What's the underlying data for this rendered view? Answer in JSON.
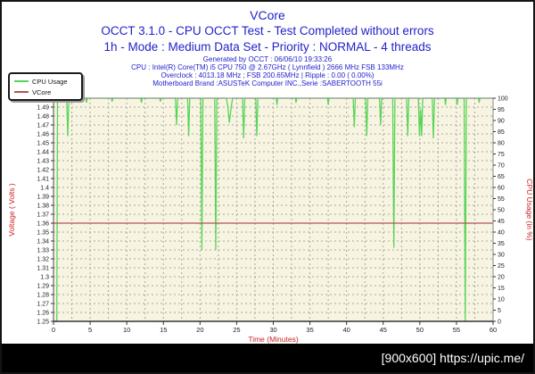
{
  "header": {
    "title": "VCore",
    "result_line": "OCCT 3.1.0 - CPU OCCT Test - Test Completed without errors",
    "mode_line": "1h - Mode : Medium Data Set - Priority : NORMAL - 4 threads",
    "info_lines": [
      "Generated by OCCT : 06/06/10 19:33:26",
      "CPU : Intel(R) Core(TM) i5 CPU 750 @ 2.67GHz ( Lynnfield ) 2666 MHz FSB 133MHz",
      "Overclock : 4013.18 MHz ; FSB 200.65MHz | Ripple : 0.00 ( 0.00%)",
      "Motherboard Brand :ASUSTeK Computer INC.,Serie :SABERTOOTH 55i"
    ]
  },
  "legend": {
    "items": [
      {
        "label": "CPU Usage",
        "color": "#58d558"
      },
      {
        "label": "VCore",
        "color": "#b05555"
      }
    ]
  },
  "watermark": {
    "text": "[900x600] https://upic.me/"
  },
  "colors": {
    "header_blue": "#2222cc",
    "axis_red": "#cc2222",
    "cpu_green": "#58d558",
    "vcore_red": "#b05555",
    "plot_background": "#f8f4e2"
  },
  "chart_data": {
    "type": "line",
    "title": "VCore",
    "grid": true,
    "legend_position": "top-left",
    "plot_bg": "#f8f4e2",
    "grid_color": "#a9a99b",
    "tick_color": "#222222",
    "axis_title_color": "#cc2222",
    "x_axis": {
      "label": "Time (Minutes)",
      "min": 0,
      "max": 60,
      "tick_step": 5,
      "minor_step": 2.5,
      "ticks": [
        0,
        5,
        10,
        15,
        20,
        25,
        30,
        35,
        40,
        45,
        50,
        55,
        60
      ]
    },
    "y_left": {
      "label": "Voltage ( Volts )",
      "min": 1.25,
      "max": 1.5,
      "tick_step": 0.01,
      "ticks": [
        "1.5",
        "1.49",
        "1.48",
        "1.47",
        "1.46",
        "1.45",
        "1.44",
        "1.43",
        "1.42",
        "1.41",
        "1.4",
        "1.39",
        "1.38",
        "1.37",
        "1.36",
        "1.35",
        "1.34",
        "1.33",
        "1.32",
        "1.31",
        "1.3",
        "1.29",
        "1.28",
        "1.27",
        "1.26",
        "1.25"
      ]
    },
    "y_right": {
      "label": "CPU Usage (in %)",
      "min": 0,
      "max": 100,
      "tick_step": 5,
      "ticks": [
        100,
        95,
        90,
        85,
        80,
        75,
        70,
        65,
        60,
        55,
        50,
        45,
        40,
        35,
        30,
        25,
        20,
        15,
        10,
        5,
        0
      ]
    },
    "series": [
      {
        "name": "CPU Usage",
        "axis": "right",
        "color": "#58d558",
        "points": [
          [
            0,
            0
          ],
          [
            0.45,
            0
          ],
          [
            0.55,
            100
          ],
          [
            1.8,
            100
          ],
          [
            1.95,
            83
          ],
          [
            2.1,
            100
          ],
          [
            4.4,
            100
          ],
          [
            4.5,
            98
          ],
          [
            4.6,
            100
          ],
          [
            7.9,
            100
          ],
          [
            8.0,
            98.5
          ],
          [
            8.1,
            100
          ],
          [
            11.9,
            100
          ],
          [
            12.0,
            98
          ],
          [
            12.1,
            100
          ],
          [
            14.5,
            100
          ],
          [
            14.6,
            98.5
          ],
          [
            14.7,
            100
          ],
          [
            16.65,
            100
          ],
          [
            16.8,
            88
          ],
          [
            16.95,
            100
          ],
          [
            18.3,
            100
          ],
          [
            18.45,
            83
          ],
          [
            18.6,
            100
          ],
          [
            20.1,
            100
          ],
          [
            20.25,
            32
          ],
          [
            20.4,
            100
          ],
          [
            22.0,
            100
          ],
          [
            22.15,
            32
          ],
          [
            22.3,
            100
          ],
          [
            23.6,
            100
          ],
          [
            23.8,
            96
          ],
          [
            24.0,
            89
          ],
          [
            24.25,
            96
          ],
          [
            24.45,
            100
          ],
          [
            25.8,
            100
          ],
          [
            25.95,
            82
          ],
          [
            26.1,
            100
          ],
          [
            27.6,
            100
          ],
          [
            27.75,
            83
          ],
          [
            27.9,
            100
          ],
          [
            30.4,
            100
          ],
          [
            30.5,
            97
          ],
          [
            30.6,
            100
          ],
          [
            33.0,
            100
          ],
          [
            33.1,
            98
          ],
          [
            33.2,
            100
          ],
          [
            37.4,
            100
          ],
          [
            37.5,
            97
          ],
          [
            37.6,
            100
          ],
          [
            40.9,
            100
          ],
          [
            41.05,
            87
          ],
          [
            41.2,
            100
          ],
          [
            42.6,
            100
          ],
          [
            42.75,
            83
          ],
          [
            42.9,
            100
          ],
          [
            44.5,
            100
          ],
          [
            44.65,
            88
          ],
          [
            44.8,
            100
          ],
          [
            46.3,
            100
          ],
          [
            46.45,
            33
          ],
          [
            46.6,
            100
          ],
          [
            48.2,
            100
          ],
          [
            48.35,
            83
          ],
          [
            48.5,
            100
          ],
          [
            49.8,
            100
          ],
          [
            49.95,
            83
          ],
          [
            50.1,
            95
          ],
          [
            50.25,
            83
          ],
          [
            50.4,
            100
          ],
          [
            51.7,
            100
          ],
          [
            51.85,
            82
          ],
          [
            52.0,
            100
          ],
          [
            53.4,
            100
          ],
          [
            53.5,
            97
          ],
          [
            53.6,
            100
          ],
          [
            55.0,
            100
          ],
          [
            55.1,
            97
          ],
          [
            55.2,
            100
          ],
          [
            56.05,
            100
          ],
          [
            56.2,
            0
          ],
          [
            56.35,
            100
          ],
          [
            58.0,
            100
          ],
          [
            58.1,
            98
          ],
          [
            58.2,
            100
          ],
          [
            60,
            100
          ]
        ]
      },
      {
        "name": "VCore",
        "axis": "left",
        "color": "#b05555",
        "points": [
          [
            0,
            1.36
          ],
          [
            60,
            1.36
          ]
        ]
      }
    ]
  }
}
